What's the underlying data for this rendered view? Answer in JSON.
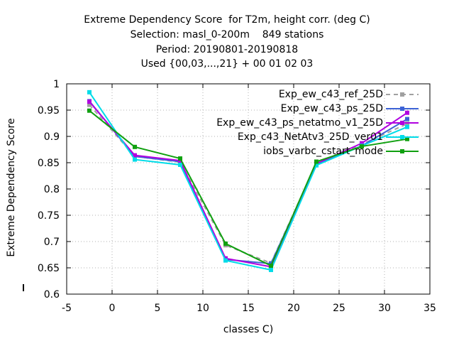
{
  "chart_data": {
    "type": "line",
    "title_lines": [
      "Extreme Dependency Score  for T2m, height corr. (deg C)",
      "Selection: masl_0-200m    849 stations",
      "Period: 20190801-20190818",
      "Used {00,03,...,21} + 00 01 02 03"
    ],
    "xlabel": "classes C)",
    "ylabel": "Extreme Dependency Score",
    "xlim": [
      -5,
      35
    ],
    "ylim": [
      0.6,
      1.0
    ],
    "xticks": [
      "-5",
      "0",
      "5",
      "10",
      "15",
      "20",
      "25",
      "30",
      "35"
    ],
    "yticks": [
      "0.6",
      "0.65",
      "0.7",
      "0.75",
      "0.8",
      "0.85",
      "0.9",
      "0.95",
      "1"
    ],
    "grid": true,
    "legend_position": "top-right",
    "series": [
      {
        "name": "Exp_ew_c43_ref_25D",
        "color": "#a0a0a0",
        "dash": "6,5",
        "x": [
          -2.5,
          2.5,
          7.5,
          12.5,
          17.5,
          22.5,
          27.5,
          32.5
        ],
        "y": [
          0.96,
          0.862,
          0.851,
          0.693,
          0.659,
          0.849,
          0.885,
          0.924
        ]
      },
      {
        "name": "Exp_ew_c43_ps_25D",
        "color": "#3d63d6",
        "dash": "",
        "x": [
          -2.5,
          2.5,
          7.5,
          12.5,
          17.5,
          22.5,
          27.5,
          32.5
        ],
        "y": [
          0.967,
          0.862,
          0.852,
          0.666,
          0.658,
          0.847,
          0.882,
          0.933
        ]
      },
      {
        "name": "Exp_ew_c43_ps_netatmo_v1_25D",
        "color": "#b000e0",
        "dash": "",
        "x": [
          -2.5,
          2.5,
          7.5,
          12.5,
          17.5,
          22.5,
          27.5,
          32.5
        ],
        "y": [
          0.966,
          0.864,
          0.854,
          0.668,
          0.652,
          0.848,
          0.887,
          0.945
        ]
      },
      {
        "name": "Exp_c43_NetAtv3_25D_ver01",
        "color": "#00dce8",
        "dash": "",
        "x": [
          -2.5,
          2.5,
          7.5,
          12.5,
          17.5,
          22.5,
          27.5,
          32.5
        ],
        "y": [
          0.984,
          0.856,
          0.846,
          0.664,
          0.646,
          0.845,
          0.882,
          0.918
        ]
      },
      {
        "name": "iobs_varbc_cstart_mode",
        "color": "#10a010",
        "dash": "",
        "x": [
          -2.5,
          2.5,
          7.5,
          12.5,
          17.5,
          22.5,
          27.5,
          32.5
        ],
        "y": [
          0.949,
          0.88,
          0.858,
          0.696,
          0.654,
          0.852,
          0.881,
          0.895
        ]
      }
    ]
  }
}
